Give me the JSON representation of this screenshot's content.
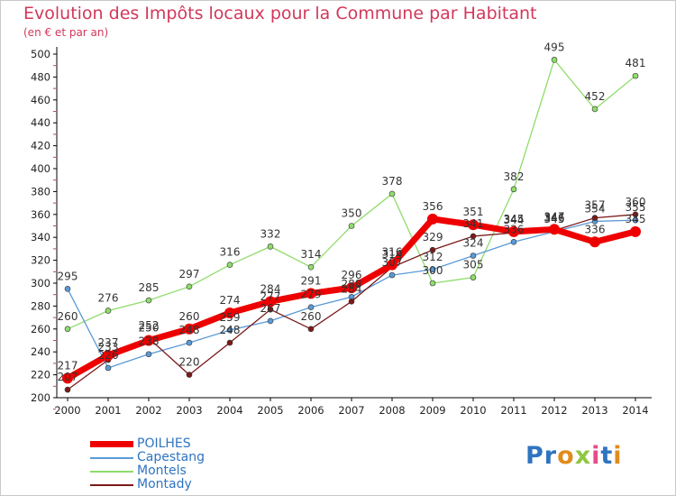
{
  "chart_data": {
    "type": "line",
    "title": "Evolution des Impôts locaux pour la Commune par Habitant",
    "subtitle": "(en € et par an)",
    "xlabel": "",
    "ylabel": "",
    "x": [
      "2000",
      "2001",
      "2002",
      "2003",
      "2004",
      "2005",
      "2006",
      "2007",
      "2008",
      "2009",
      "2010",
      "2011",
      "2012",
      "2013",
      "2014"
    ],
    "ylim": [
      200,
      500
    ],
    "yticks": [
      200,
      220,
      240,
      260,
      280,
      300,
      320,
      340,
      360,
      380,
      400,
      420,
      440,
      460,
      480,
      500
    ],
    "grid": false,
    "legend_position": "bottom-left",
    "series": [
      {
        "name": "POILHES",
        "color": "#ee0000",
        "values": [
          217,
          237,
          250,
          260,
          274,
          284,
          291,
          296,
          316,
          356,
          351,
          345,
          347,
          336,
          345
        ],
        "labels": [
          "217",
          "237",
          "250",
          "260",
          "274",
          "284",
          "291",
          "296",
          "316",
          "356",
          "351",
          "345",
          "347",
          "336",
          "345"
        ]
      },
      {
        "name": "Capestang",
        "color": "#5a9ad6",
        "values": [
          295,
          226,
          238,
          248,
          259,
          267,
          279,
          288,
          307,
          312,
          324,
          336,
          345,
          354,
          355
        ],
        "labels": [
          "295",
          "226",
          "238",
          "248",
          "259",
          "267",
          "279",
          "288",
          "307",
          "312",
          "324",
          "336",
          "345",
          "354",
          "355"
        ]
      },
      {
        "name": "Montels",
        "color": "#8fdc6c",
        "values": [
          260,
          276,
          285,
          297,
          316,
          332,
          314,
          350,
          378,
          300,
          305,
          382,
          495,
          452,
          481
        ],
        "labels": [
          "260",
          "276",
          "285",
          "297",
          "316",
          "332",
          "314",
          "350",
          "378",
          "300",
          "305",
          "382",
          "495",
          "452",
          "481"
        ]
      },
      {
        "name": "Montady",
        "color": "#7a1a1a",
        "values": [
          207,
          233,
          252,
          220,
          248,
          277,
          260,
          284,
          314,
          329,
          341,
          344,
          346,
          357,
          360
        ],
        "labels": [
          "207",
          "233",
          "252",
          "220",
          "248",
          "277",
          "260",
          "284",
          "314",
          "329",
          "341",
          "344",
          "346",
          "357",
          "360"
        ]
      }
    ]
  },
  "branding": {
    "logo_letters": [
      {
        "char": "P",
        "color": "#2f74c0"
      },
      {
        "char": "r",
        "color": "#2f74c0"
      },
      {
        "char": "o",
        "color": "#e08c1c"
      },
      {
        "char": "x",
        "color": "#8fc742"
      },
      {
        "char": "i",
        "color": "#e84a8a"
      },
      {
        "char": "t",
        "color": "#2f74c0"
      },
      {
        "char": "i",
        "color": "#e08c1c"
      }
    ]
  }
}
